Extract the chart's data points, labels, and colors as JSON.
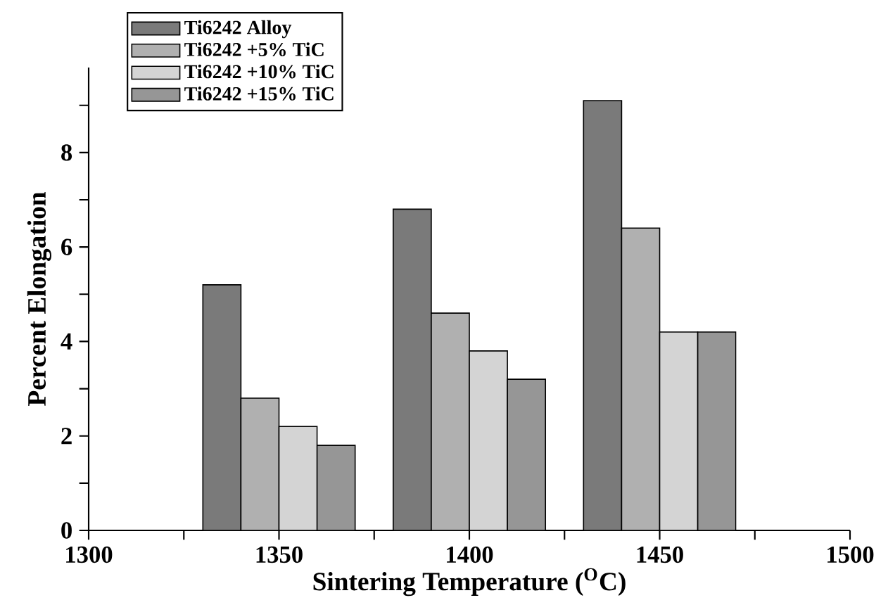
{
  "chart_data": {
    "type": "bar",
    "xlabel": "Sintering Temperature ($^{O}$C)",
    "ylabel": "Percent Elongation",
    "x": [
      1350,
      1400,
      1450
    ],
    "series": [
      {
        "name": "Ti6242 Alloy",
        "color": "#7a7a7a",
        "values": [
          5.2,
          6.8,
          9.1
        ]
      },
      {
        "name": "Ti6242 +5% TiC",
        "color": "#b0b0b0",
        "values": [
          2.8,
          4.6,
          6.4
        ]
      },
      {
        "name": "Ti6242 +10% TiC",
        "color": "#d4d4d4",
        "values": [
          2.2,
          3.8,
          4.2
        ]
      },
      {
        "name": "Ti6242 +15% TiC",
        "color": "#969696",
        "values": [
          1.8,
          3.2,
          4.2
        ]
      }
    ],
    "xlim": [
      1300,
      1500
    ],
    "xticks": [
      1300,
      {
        "value": 1325,
        "label": null
      },
      1350,
      {
        "value": 1375,
        "label": null
      },
      1400,
      {
        "value": 1425,
        "label": null
      },
      1450,
      {
        "value": 1475,
        "label": null
      },
      1500
    ],
    "ylim": [
      0,
      9.8
    ],
    "yticks": [
      0,
      {
        "value": 1,
        "label": null
      },
      2,
      {
        "value": 3,
        "label": null
      },
      4,
      {
        "value": 5,
        "label": null
      },
      6,
      {
        "value": 7,
        "label": null
      },
      8,
      {
        "value": 9,
        "label": null
      }
    ],
    "legend": "top left",
    "grid": false
  }
}
